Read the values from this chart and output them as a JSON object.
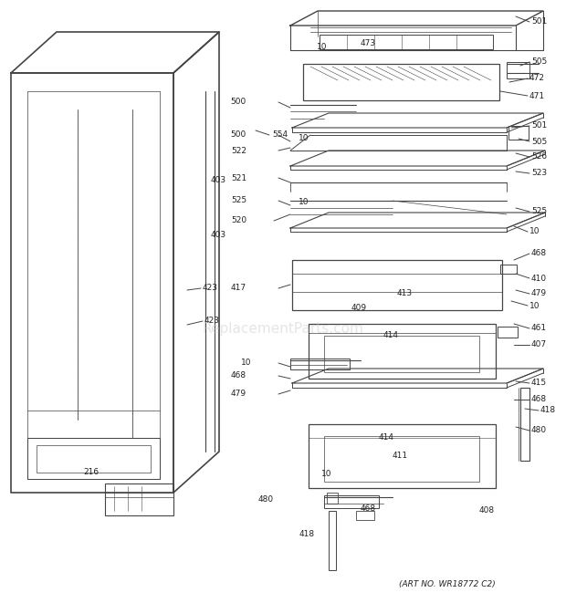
{
  "title": "",
  "art_no": "(ART NO. WR18772 C2)",
  "bg_color": "#ffffff",
  "line_color": "#444444",
  "watermark": "ReplacementParts.com",
  "watermark_color": "#cccccc"
}
